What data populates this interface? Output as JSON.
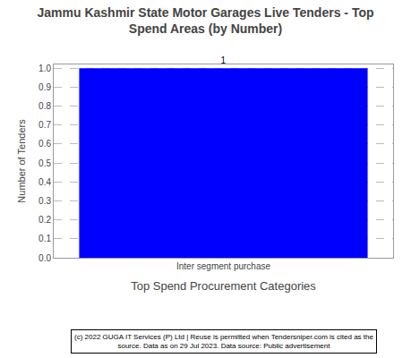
{
  "chart_data": {
    "type": "bar",
    "title": "Jammu Kashmir State Motor Garages Live Tenders - Top\nSpend Areas (by Number)",
    "x_label": "Top Spend Procurement Categories",
    "y_label": "Number of Tenders",
    "categories": [
      "Inter segment purchase"
    ],
    "values": [
      1
    ],
    "color": "#0000ff",
    "ylim": [
      0,
      1.02
    ],
    "yticks": [
      {
        "value": 0,
        "label": "0.0"
      },
      0.1,
      0.2,
      0.3,
      0.4,
      0.5,
      0.6,
      0.7,
      0.8,
      0.9,
      {
        "value": 1,
        "label": "1.0"
      }
    ],
    "grid": true,
    "data_labels": true,
    "annotations": [
      "(c) 2022 GUGA IT Services (P) Ltd | Reuse is permitted when Tendersniper.com is cited as the\nsource. Data as on 29 Jul 2023. Data source: Public advertisement"
    ]
  }
}
